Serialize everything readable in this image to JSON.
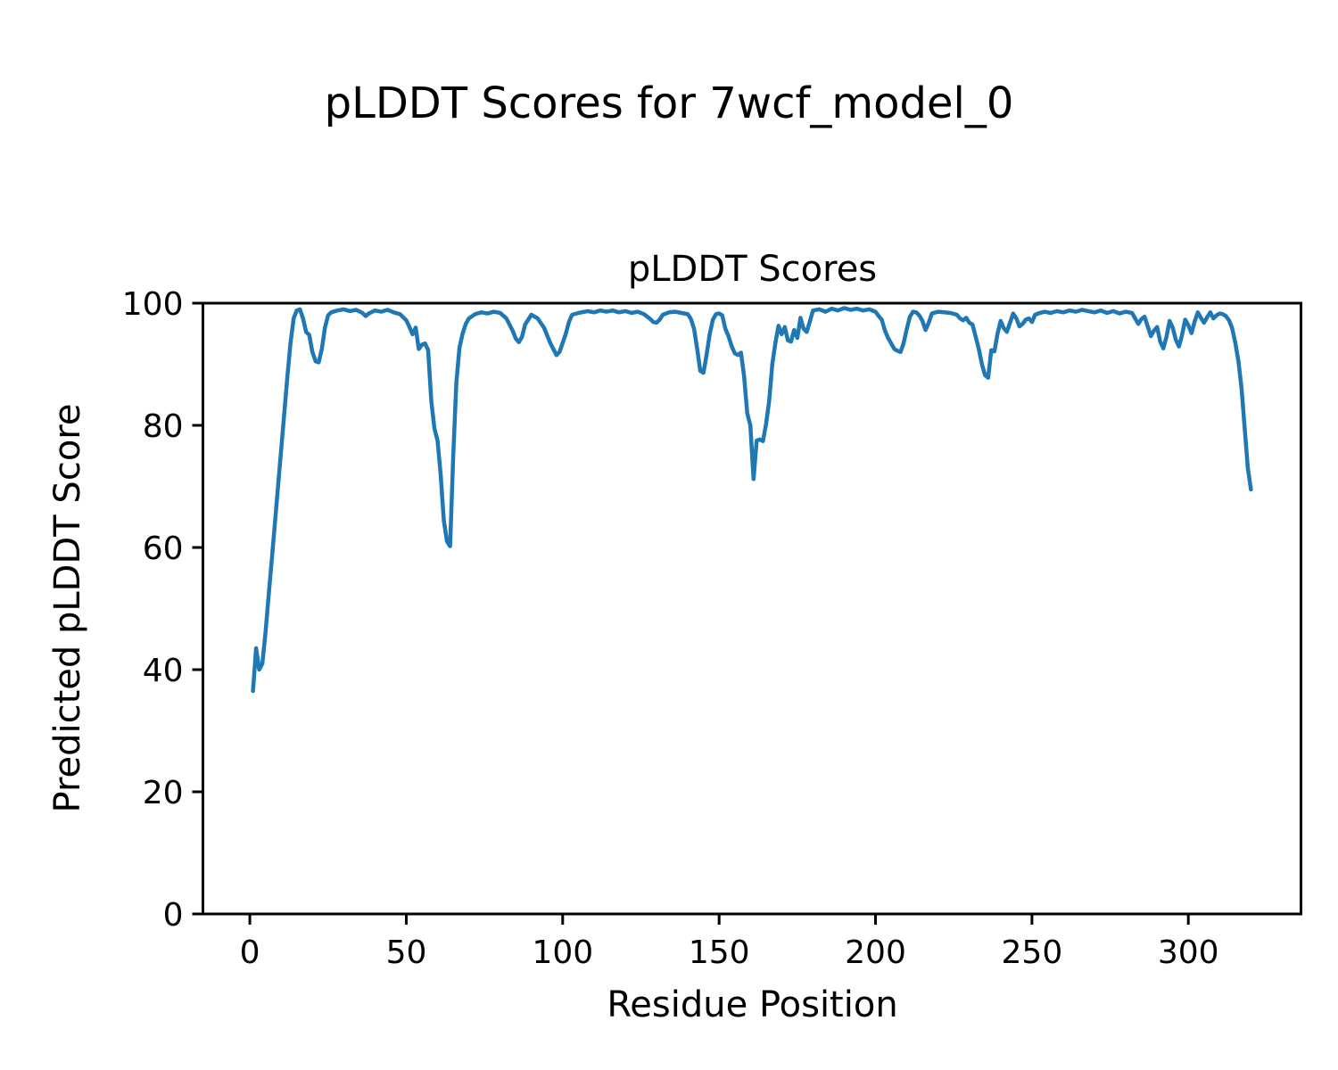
{
  "figure": {
    "title": "pLDDT Scores for 7wcf_model_0"
  },
  "chart_data": {
    "type": "line",
    "title": "pLDDT Scores",
    "xlabel": "Residue Position",
    "ylabel": "Predicted pLDDT Score",
    "xlim": [
      -15,
      336
    ],
    "ylim": [
      0,
      100
    ],
    "x_ticks": [
      0,
      50,
      100,
      150,
      200,
      250,
      300
    ],
    "y_ticks": [
      0,
      20,
      40,
      60,
      80,
      100
    ],
    "grid": false,
    "legend": null,
    "line_color": "#1f77b4",
    "line_width": 4.5,
    "series": [
      {
        "name": "pLDDT",
        "x": [
          1,
          2,
          3,
          4,
          5,
          6,
          7,
          8,
          9,
          10,
          11,
          12,
          13,
          14,
          15,
          16,
          17,
          18,
          19,
          20,
          21,
          22,
          23,
          24,
          25,
          26,
          28,
          30,
          32,
          34,
          36,
          37,
          38,
          40,
          42,
          44,
          46,
          48,
          50,
          51,
          52,
          53,
          54,
          55,
          56,
          57,
          58,
          59,
          60,
          61,
          62,
          63,
          64,
          65,
          66,
          67,
          68,
          69,
          70,
          72,
          74,
          76,
          78,
          80,
          82,
          84,
          85,
          86,
          87,
          88,
          90,
          92,
          94,
          96,
          98,
          99,
          100,
          101,
          102,
          103,
          105,
          108,
          110,
          112,
          114,
          116,
          118,
          120,
          122,
          124,
          126,
          128,
          129,
          130,
          131,
          132,
          134,
          136,
          138,
          140,
          141,
          142,
          143,
          144,
          145,
          146,
          147,
          148,
          149,
          150,
          151,
          152,
          153,
          154,
          155,
          156,
          157,
          158,
          159,
          160,
          161,
          162,
          163,
          164,
          165,
          166,
          167,
          168,
          169,
          170,
          171,
          172,
          173,
          174,
          175,
          176,
          177,
          178,
          179,
          180,
          182,
          184,
          186,
          188,
          190,
          192,
          194,
          196,
          198,
          200,
          201,
          202,
          203,
          204,
          205,
          206,
          207,
          208,
          209,
          210,
          211,
          212,
          213,
          214,
          215,
          216,
          217,
          218,
          220,
          222,
          224,
          226,
          227,
          228,
          229,
          230,
          231,
          232,
          233,
          234,
          235,
          236,
          237,
          238,
          239,
          240,
          241,
          242,
          243,
          244,
          245,
          246,
          247,
          248,
          249,
          250,
          251,
          252,
          254,
          256,
          258,
          260,
          262,
          264,
          266,
          268,
          270,
          272,
          274,
          276,
          278,
          280,
          282,
          284,
          285,
          286,
          287,
          288,
          289,
          290,
          291,
          292,
          293,
          294,
          295,
          296,
          297,
          298,
          299,
          300,
          301,
          302,
          303,
          304,
          305,
          306,
          307,
          308,
          309,
          310,
          311,
          312,
          313,
          314,
          315,
          316,
          317,
          318,
          319,
          320
        ],
        "y": [
          36.5,
          43.5,
          40,
          41,
          46,
          52,
          58,
          64,
          70,
          76,
          82,
          88,
          93.5,
          97.5,
          98.8,
          99,
          97.5,
          95.3,
          94.8,
          92,
          90.5,
          90.3,
          92.5,
          96,
          98,
          98.5,
          98.8,
          99,
          98.7,
          98.9,
          98.4,
          97.9,
          98.3,
          98.8,
          98.6,
          98.9,
          98.5,
          98.2,
          97.2,
          96.1,
          94.9,
          96,
          92.5,
          93.2,
          93.4,
          92.3,
          84,
          79.5,
          77.5,
          72,
          64.5,
          61,
          60.2,
          75,
          87,
          92.7,
          95,
          96.6,
          97.5,
          98.2,
          98.5,
          98.3,
          98.6,
          98.4,
          97.5,
          95.5,
          94.2,
          93.6,
          94.5,
          96.5,
          98.1,
          97.5,
          96,
          93.5,
          91.5,
          92,
          93.5,
          95,
          96.9,
          98.1,
          98.4,
          98.7,
          98.5,
          98.8,
          98.6,
          98.8,
          98.5,
          98.7,
          98.4,
          98.6,
          98.2,
          97.4,
          96.9,
          96.8,
          97.3,
          98.1,
          98.5,
          98.6,
          98.4,
          98.2,
          97.4,
          95.8,
          92.5,
          88.9,
          88.6,
          91.5,
          95,
          97.3,
          98.2,
          98.3,
          98,
          95.8,
          94.6,
          93,
          91.8,
          91.5,
          91.9,
          88,
          82,
          80,
          71.2,
          77.5,
          77.7,
          77.4,
          80.2,
          84,
          90,
          93.5,
          96.3,
          94.9,
          96.1,
          93.9,
          93.7,
          95.6,
          94.3,
          97.6,
          95.8,
          95.3,
          97,
          98.8,
          99,
          98.6,
          99.1,
          98.8,
          99.2,
          98.9,
          99.1,
          98.8,
          99,
          98.6,
          97.9,
          97.3,
          95.5,
          94.3,
          93.4,
          92.5,
          92.2,
          92,
          93.5,
          95.8,
          97.8,
          98.6,
          98.5,
          98,
          97.1,
          95.6,
          96.8,
          98.3,
          98.6,
          98.5,
          98.4,
          98.1,
          97.5,
          97.2,
          97.6,
          96.8,
          96.5,
          94.5,
          92.5,
          90,
          88.2,
          87.8,
          92.3,
          92.1,
          95,
          97.1,
          95.9,
          95.3,
          96.8,
          98.3,
          97.5,
          96.2,
          96.6,
          97.3,
          97.5,
          96.9,
          98.1,
          98.3,
          98.6,
          98.4,
          98.7,
          98.5,
          98.8,
          98.6,
          98.9,
          98.7,
          98.5,
          98.8,
          98.4,
          98.7,
          98.3,
          98.6,
          98.4,
          96.6,
          97.4,
          97.8,
          96.2,
          94.6,
          95.5,
          96.1,
          93.7,
          92.6,
          94.5,
          97.1,
          96,
          94,
          92.9,
          94.8,
          97.3,
          96.4,
          95.1,
          97,
          98.5,
          97.6,
          96.8,
          97.7,
          98.5,
          97.5,
          98,
          98.3,
          98.2,
          97.9,
          97.2,
          95.9,
          93.5,
          90.5,
          86,
          79.5,
          73,
          69.5
        ]
      }
    ]
  }
}
